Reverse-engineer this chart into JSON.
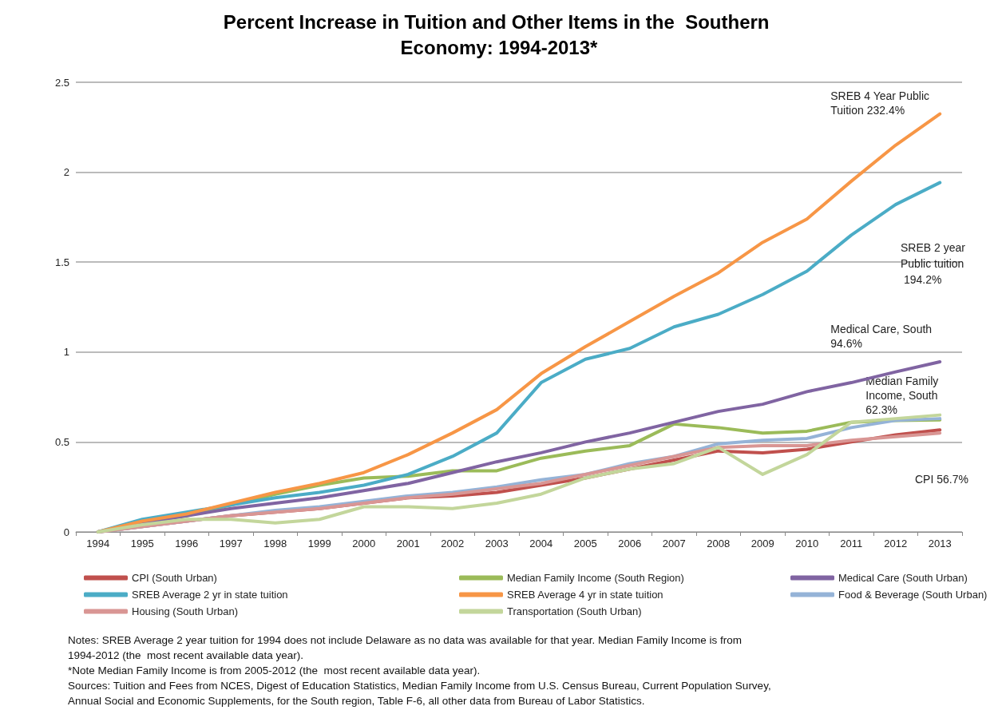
{
  "chart_data": {
    "type": "line",
    "title": "Percent Increase in Tuition and Other Items in the  Southern Economy: 1994-2013*",
    "categories": [
      "1994",
      "1995",
      "1996",
      "1997",
      "1998",
      "1999",
      "2000",
      "2001",
      "2002",
      "2003",
      "2004",
      "2005",
      "2006",
      "2007",
      "2008",
      "2009",
      "2010",
      "2011",
      "2012",
      "2013"
    ],
    "series": [
      {
        "name": "CPI (South Urban)",
        "color": "#c0504d",
        "values": [
          0,
          0.03,
          0.06,
          0.09,
          0.11,
          0.13,
          0.16,
          0.19,
          0.2,
          0.22,
          0.26,
          0.3,
          0.35,
          0.4,
          0.45,
          0.44,
          0.46,
          0.5,
          0.54,
          0.567
        ]
      },
      {
        "name": "Median Family Income (South Region)",
        "color": "#9bbb59",
        "values": [
          0,
          0.05,
          0.09,
          0.15,
          0.21,
          0.26,
          0.3,
          0.31,
          0.34,
          0.34,
          0.41,
          0.45,
          0.48,
          0.6,
          0.58,
          0.55,
          0.56,
          0.61,
          0.62,
          0.623
        ]
      },
      {
        "name": "Medical Care (South Urban)",
        "color": "#8064a2",
        "values": [
          0,
          0.05,
          0.09,
          0.13,
          0.16,
          0.19,
          0.23,
          0.27,
          0.33,
          0.39,
          0.44,
          0.5,
          0.55,
          0.61,
          0.67,
          0.71,
          0.78,
          0.83,
          0.89,
          0.946
        ]
      },
      {
        "name": "SREB Average 2 yr in state tuition",
        "color": "#4bacc6",
        "values": [
          0,
          0.07,
          0.11,
          0.15,
          0.19,
          0.22,
          0.26,
          0.32,
          0.42,
          0.55,
          0.83,
          0.96,
          1.02,
          1.14,
          1.21,
          1.32,
          1.45,
          1.65,
          1.82,
          1.942
        ]
      },
      {
        "name": "SREB Average 4 yr in state tuition",
        "color": "#f79646",
        "values": [
          0,
          0.06,
          0.1,
          0.16,
          0.22,
          0.27,
          0.33,
          0.43,
          0.55,
          0.68,
          0.88,
          1.03,
          1.17,
          1.31,
          1.44,
          1.61,
          1.74,
          1.95,
          2.15,
          2.324
        ]
      },
      {
        "name": "Food & Beverage (South Urban)",
        "color": "#95b3d7",
        "values": [
          0,
          0.03,
          0.06,
          0.09,
          0.12,
          0.14,
          0.17,
          0.2,
          0.22,
          0.25,
          0.29,
          0.32,
          0.38,
          0.42,
          0.49,
          0.51,
          0.52,
          0.58,
          0.62,
          0.63
        ]
      },
      {
        "name": "Housing (South Urban)",
        "color": "#d99694",
        "values": [
          0,
          0.03,
          0.06,
          0.09,
          0.11,
          0.13,
          0.16,
          0.19,
          0.21,
          0.24,
          0.27,
          0.32,
          0.37,
          0.42,
          0.47,
          0.48,
          0.48,
          0.51,
          0.53,
          0.55
        ]
      },
      {
        "name": "Transportation (South Urban)",
        "color": "#c3d69b",
        "values": [
          0,
          0.04,
          0.07,
          0.07,
          0.05,
          0.07,
          0.14,
          0.14,
          0.13,
          0.16,
          0.21,
          0.3,
          0.35,
          0.38,
          0.47,
          0.32,
          0.43,
          0.61,
          0.63,
          0.65
        ]
      }
    ],
    "ylim": [
      0,
      2.5
    ],
    "yticks": [
      0,
      0.5,
      1,
      1.5,
      2,
      2.5
    ],
    "grid": "y",
    "legend": "bottom",
    "marker": "none",
    "line_style": "solid",
    "annotations": [
      {
        "text": "SREB 4 Year Public Tuition 232.4%",
        "x": "2013",
        "y": 2.324
      },
      "SREB 2 year Public tuition 194.2%",
      {
        "text": "Medical Care, South 94.6%",
        "x": "2013",
        "y": 0.946
      },
      {
        "text": "Median Family Income, South 62.3%",
        "x": "2013",
        "y": 0.623
      },
      "CPI 56.7%",
      "Notes: SREB Average 2 year tuition for 1994 does not include Delaware as no data was available for that year. Median Family Income is from 1994-2012 (the  most recent available data year).",
      "*Note Median Family Income is from 2005-2012 (the  most recent available data year).",
      "Sources: Tuition and Fees from NCES, Digest of Education Statistics, Median Family Income from U.S. Census Bureau, Current Population Survey, Annual Social and Economic Supplements, for the South region, Table F-6, all other data from Bureau of Labor Statistics."
    ]
  }
}
